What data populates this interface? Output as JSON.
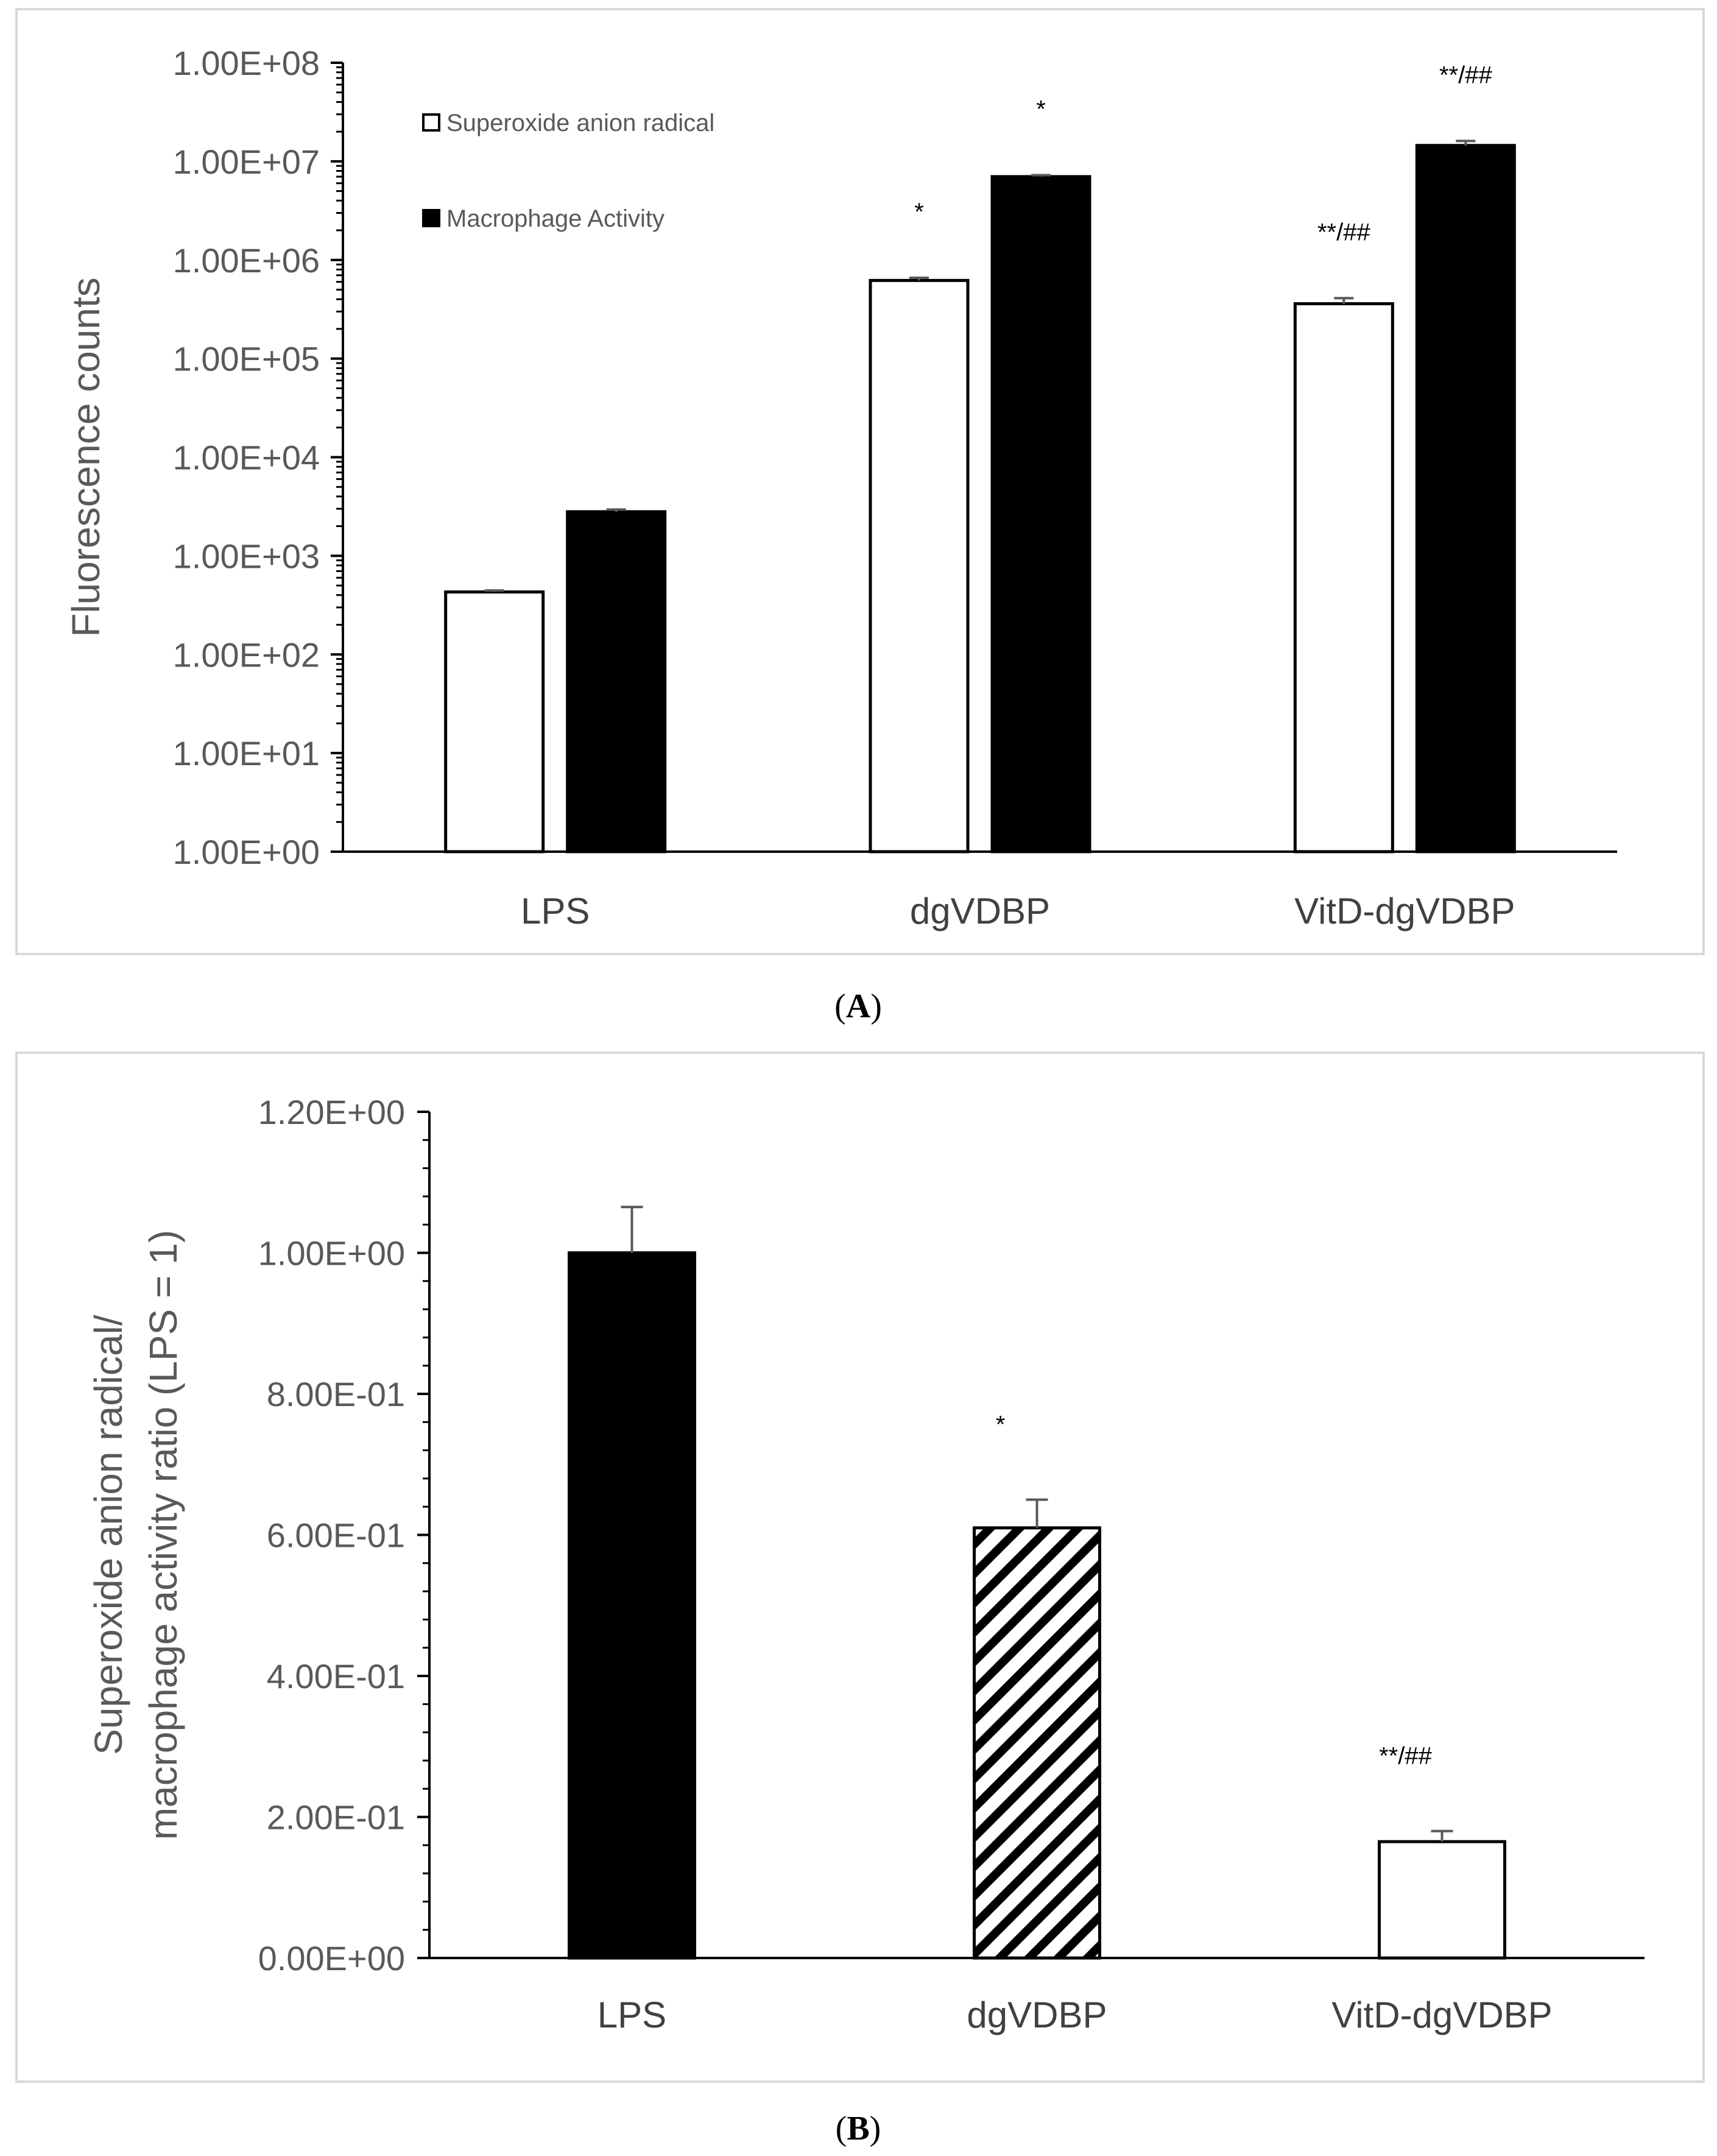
{
  "chart_data": [
    {
      "panel_label": "A",
      "type": "bar",
      "yscale": "log",
      "ylabel": "Fluorescence counts",
      "xlabel": "",
      "ylim": [
        1,
        100000000
      ],
      "ytick_values": [
        1,
        10,
        100,
        1000,
        10000,
        100000,
        1000000,
        10000000,
        100000000
      ],
      "ytick_labels": [
        "1.00E+00",
        "1.00E+01",
        "1.00E+02",
        "1.00E+03",
        "1.00E+04",
        "1.00E+05",
        "1.00E+06",
        "1.00E+07",
        "1.00E+08"
      ],
      "categories": [
        "LPS",
        "dgVDBP",
        "VitD-dgVDBP"
      ],
      "legend_position": "top-left",
      "series": [
        {
          "name": "Superoxide anion radical",
          "fill": "#ffffff",
          "values": [
            430,
            620000,
            360000
          ],
          "errors": [
            15,
            40000,
            50000
          ],
          "annotations": [
            "",
            "*",
            "**/##"
          ]
        },
        {
          "name": "Macrophage Activity",
          "fill": "#000000",
          "values": [
            2800,
            7000000,
            14500000
          ],
          "errors": [
            150,
            250000,
            1600000
          ],
          "annotations": [
            "",
            "*",
            "**/##"
          ]
        }
      ]
    },
    {
      "panel_label": "B",
      "type": "bar",
      "yscale": "linear",
      "ylabel_lines": [
        "Superoxide anion radical/",
        "macrophage activity ratio (LPS = 1)"
      ],
      "xlabel": "",
      "ylim": [
        0,
        1.2
      ],
      "ytick_values": [
        0,
        0.2,
        0.4,
        0.6,
        0.8,
        1.0,
        1.2
      ],
      "ytick_labels": [
        "0.00E+00",
        "2.00E-01",
        "4.00E-01",
        "6.00E-01",
        "8.00E-01",
        "1.00E+00",
        "1.20E+00"
      ],
      "categories": [
        "LPS",
        "dgVDBP",
        "VitD-dgVDBP"
      ],
      "series": [
        {
          "name": "ratio",
          "values": [
            1.0,
            0.61,
            0.165
          ],
          "errors": [
            0.065,
            0.04,
            0.015
          ],
          "fills": [
            "solid-black",
            "diagonal-hatch",
            "white"
          ],
          "annotations": [
            "",
            "*",
            "**/##"
          ]
        }
      ]
    }
  ],
  "captions": {
    "a": "A",
    "b": "B"
  }
}
